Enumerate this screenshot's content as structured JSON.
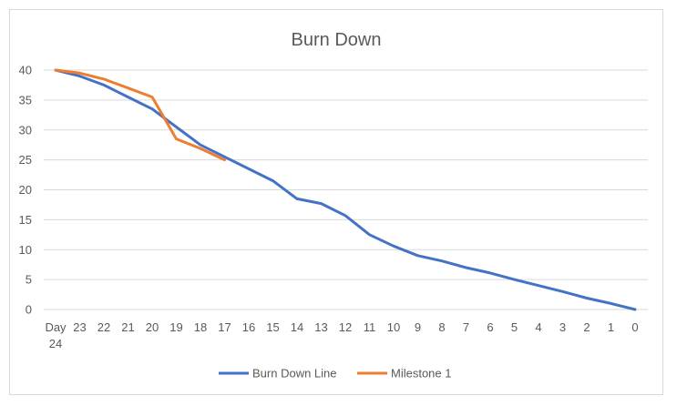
{
  "chart_data": {
    "type": "line",
    "title": "Burn Down",
    "xlabel": "",
    "ylabel": "",
    "categories": [
      "Day 24",
      "23",
      "22",
      "21",
      "20",
      "19",
      "18",
      "17",
      "16",
      "15",
      "14",
      "13",
      "12",
      "11",
      "10",
      "9",
      "8",
      "7",
      "6",
      "5",
      "4",
      "3",
      "2",
      "1",
      "0"
    ],
    "ylim": [
      0,
      40
    ],
    "yticks": [
      "0",
      "5",
      "10",
      "15",
      "20",
      "25",
      "30",
      "35",
      "40"
    ],
    "grid": true,
    "legend_position": "bottom",
    "series": [
      {
        "name": "Burn Down Line",
        "color": "#4472C4",
        "values": [
          40,
          39,
          37.5,
          35.5,
          33.5,
          30.5,
          27.5,
          25.5,
          23.5,
          21.5,
          18.5,
          17.7,
          15.7,
          12.5,
          10.6,
          9,
          8.1,
          7,
          6.1,
          5,
          4,
          3,
          1.9,
          1,
          0
        ]
      },
      {
        "name": "Milestone 1",
        "color": "#ED7D31",
        "values": [
          40,
          39.5,
          38.5,
          37,
          35.5,
          28.5,
          26.9,
          25,
          null,
          null,
          null,
          null,
          null,
          null,
          null,
          null,
          null,
          null,
          null,
          null,
          null,
          null,
          null,
          null,
          null
        ]
      }
    ]
  }
}
